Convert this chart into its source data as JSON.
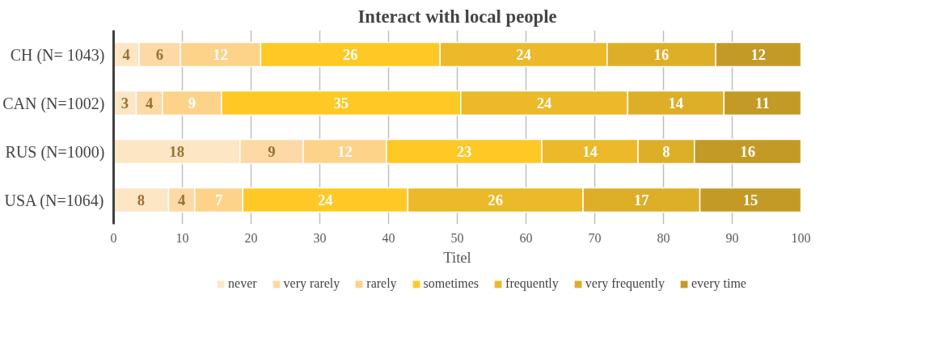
{
  "chart_data": {
    "type": "bar",
    "orientation": "horizontal",
    "stacked": true,
    "title": "Interact with local people",
    "xlabel": "Titel",
    "categories": [
      "CH (N= 1043)",
      "CAN (N=1002)",
      "RUS (N=1000)",
      "USA (N=1064)"
    ],
    "xlim": [
      0,
      100
    ],
    "xticks": [
      0,
      10,
      20,
      30,
      40,
      50,
      60,
      70,
      80,
      90,
      100
    ],
    "grid": "x",
    "legend": "bottom",
    "series": [
      {
        "name": "never",
        "color": "#fde6c4",
        "values": [
          3.7,
          3.3,
          18.4,
          8.0
        ],
        "value_labels": [
          "4",
          "3",
          "18",
          "8"
        ]
      },
      {
        "name": "very rarely",
        "color": "#fdd9a6",
        "values": [
          6.0,
          3.8,
          9.2,
          3.8
        ],
        "value_labels": [
          "6",
          "4",
          "9",
          "4"
        ]
      },
      {
        "name": "rarely",
        "color": "#fdd38a",
        "values": [
          11.7,
          8.6,
          12.1,
          7.0
        ],
        "value_labels": [
          "12",
          "9",
          "12",
          "7"
        ]
      },
      {
        "name": "sometimes",
        "color": "#fec925",
        "values": [
          26.1,
          34.8,
          22.6,
          24.0
        ],
        "value_labels": [
          "26",
          "35",
          "23",
          "24"
        ]
      },
      {
        "name": "frequently",
        "color": "#ebb929",
        "values": [
          24.3,
          24.3,
          14.0,
          25.5
        ],
        "value_labels": [
          "24",
          "24",
          "14",
          "26"
        ]
      },
      {
        "name": "very frequently",
        "color": "#ddae28",
        "values": [
          15.8,
          14.0,
          8.2,
          17.0
        ],
        "value_labels": [
          "16",
          "14",
          "8",
          "17"
        ]
      },
      {
        "name": "every time",
        "color": "#c49a26",
        "values": [
          12.4,
          11.2,
          15.5,
          14.7
        ],
        "value_labels": [
          "12",
          "11",
          "16",
          "15"
        ]
      }
    ]
  }
}
